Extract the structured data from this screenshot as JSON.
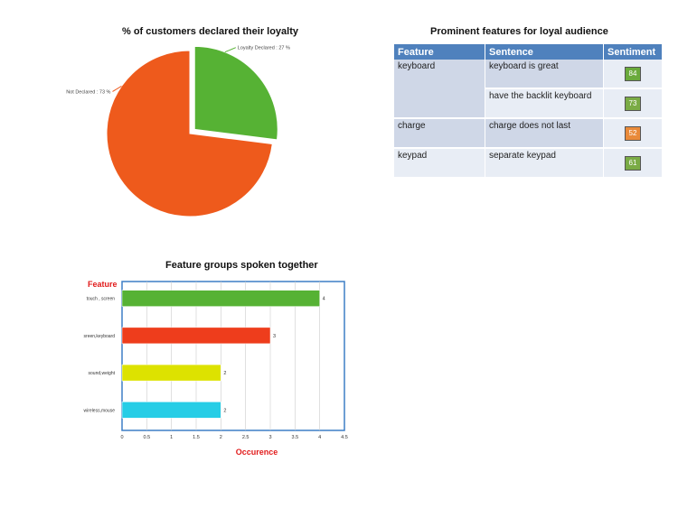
{
  "chart_data": [
    {
      "type": "pie",
      "title": "% of customers declared their loyalty",
      "slices": [
        {
          "label": "Loyalty Declared : 27 %",
          "value": 27,
          "color": "#56b234",
          "exploded": true
        },
        {
          "label": "Not Declared : 73 %",
          "value": 73,
          "color": "#ee5a1c",
          "exploded": false
        }
      ]
    },
    {
      "type": "bar",
      "orientation": "horizontal",
      "title": "Feature groups spoken together",
      "ylabel": "Feature",
      "xlabel": "Occurence",
      "categories": [
        "touch , screen",
        "sreen,keyboard",
        "sound,weight",
        "wireless,mouse"
      ],
      "values": [
        4,
        3,
        2,
        2
      ],
      "data_labels": [
        "4",
        "3",
        "2",
        "2"
      ],
      "colors": [
        "#56b234",
        "#ee3d1c",
        "#dde200",
        "#26cde6"
      ],
      "xlim": [
        0,
        4.5
      ],
      "xticks": [
        "0",
        "0.5",
        "1",
        "1.5",
        "2",
        "2.5",
        "3",
        "3.5",
        "4",
        "4.5"
      ],
      "grid": true,
      "axis_label_color": "#e11b1b"
    }
  ],
  "table": {
    "title": "Prominent features for loyal audience",
    "headers": [
      "Feature",
      "Sentence",
      "Sentiment"
    ],
    "rows": [
      {
        "feature": "keyboard",
        "sentence": "keyboard is great",
        "sentiment": "84",
        "color": "#6aaa3c"
      },
      {
        "feature": "",
        "sentence": "have the backlit  keyboard",
        "sentiment": "73",
        "color": "#7aab45"
      },
      {
        "feature": "charge",
        "sentence": "charge does not last",
        "sentiment": "52",
        "color": "#e98a3a"
      },
      {
        "feature": "keypad",
        "sentence": "separate keypad",
        "sentiment": "61",
        "color": "#7aab45"
      }
    ]
  }
}
